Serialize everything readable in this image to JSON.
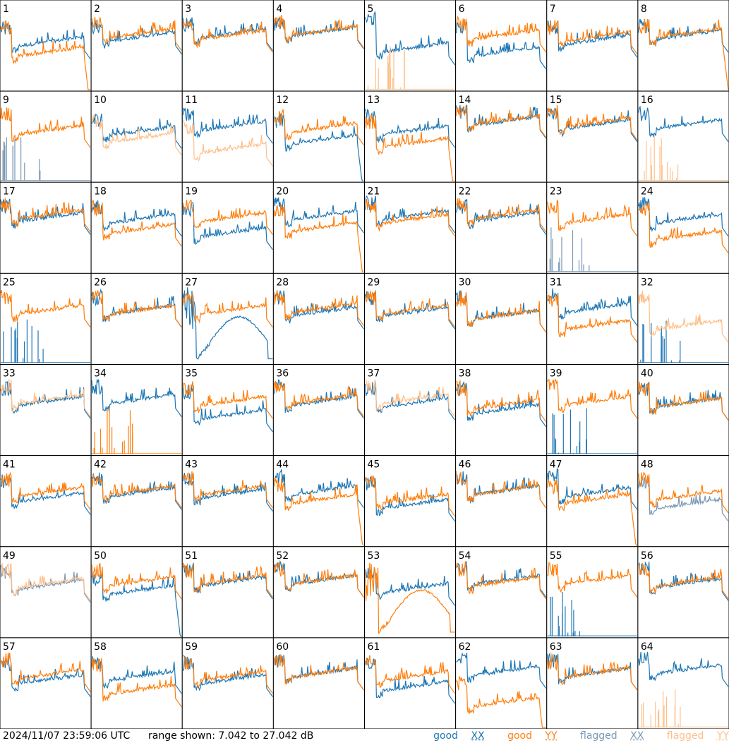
{
  "footer": {
    "timestamp": "2024/11/07 23:59:06 UTC",
    "range_text": "range shown: 7.042 to 27.042 dB"
  },
  "legend": [
    {
      "word": "good",
      "pol": "XX",
      "color": "#1f77b4"
    },
    {
      "word": "good",
      "pol": "YY",
      "color": "#ff7f0e"
    },
    {
      "word": "flagged",
      "pol": "XX",
      "color": "#7a98b6"
    },
    {
      "word": "flagged",
      "pol": "YY",
      "color": "#ffbf8a"
    }
  ],
  "chart_data": {
    "type": "line",
    "grid": {
      "rows": 8,
      "cols": 8
    },
    "ylim": [
      7.042,
      27.042
    ],
    "ylabel_units": "dB",
    "colors": {
      "good_xx": "#1f77b4",
      "good_yy": "#ff7f0e",
      "flagged_xx": "#7a98b6",
      "flagged_yy": "#ffbf8a"
    },
    "panels": [
      {
        "label": "1",
        "xx": {
          "level": 0.6,
          "mid": 0.52,
          "flag": false,
          "shape": "normal"
        },
        "yy": {
          "level": 0.62,
          "mid": 0.4,
          "flag": false,
          "shape": "drop"
        }
      },
      {
        "label": "2",
        "xx": {
          "level": 0.63,
          "mid": 0.58,
          "flag": false,
          "shape": "normal"
        },
        "yy": {
          "level": 0.66,
          "mid": 0.62,
          "flag": false,
          "shape": "normal"
        }
      },
      {
        "label": "3",
        "xx": {
          "level": 0.66,
          "mid": 0.62,
          "flag": false,
          "shape": "normal"
        },
        "yy": {
          "level": 0.64,
          "mid": 0.6,
          "flag": false,
          "shape": "normal"
        }
      },
      {
        "label": "4",
        "xx": {
          "level": 0.66,
          "mid": 0.64,
          "flag": false,
          "shape": "normal"
        },
        "yy": {
          "level": 0.68,
          "mid": 0.65,
          "flag": false,
          "shape": "normal"
        }
      },
      {
        "label": "5",
        "xx": {
          "level": 0.72,
          "mid": 0.45,
          "flag": false,
          "shape": "normal"
        },
        "yy": {
          "level": 0.0,
          "mid": 0.0,
          "flag": true,
          "shape": "spikes"
        }
      },
      {
        "label": "6",
        "xx": {
          "level": 0.62,
          "mid": 0.4,
          "flag": false,
          "shape": "normal"
        },
        "yy": {
          "level": 0.66,
          "mid": 0.6,
          "flag": false,
          "shape": "normal"
        }
      },
      {
        "label": "7",
        "xx": {
          "level": 0.63,
          "mid": 0.54,
          "flag": false,
          "shape": "normal"
        },
        "yy": {
          "level": 0.62,
          "mid": 0.58,
          "flag": false,
          "shape": "normal"
        }
      },
      {
        "label": "8",
        "xx": {
          "level": 0.64,
          "mid": 0.6,
          "flag": false,
          "shape": "normal"
        },
        "yy": {
          "level": 0.64,
          "mid": 0.62,
          "flag": false,
          "shape": "drop"
        }
      },
      {
        "label": "9",
        "xx": {
          "level": 0.0,
          "mid": 0.0,
          "flag": true,
          "shape": "spikes"
        },
        "yy": {
          "level": 0.68,
          "mid": 0.55,
          "flag": false,
          "shape": "normal"
        }
      },
      {
        "label": "10",
        "xx": {
          "level": 0.6,
          "mid": 0.54,
          "flag": false,
          "shape": "normal"
        },
        "yy": {
          "level": 0.58,
          "mid": 0.46,
          "flag": true,
          "shape": "normal"
        }
      },
      {
        "label": "11",
        "xx": {
          "level": 0.66,
          "mid": 0.6,
          "flag": false,
          "shape": "normal"
        },
        "yy": {
          "level": 0.52,
          "mid": 0.33,
          "flag": true,
          "shape": "normal"
        }
      },
      {
        "label": "12",
        "xx": {
          "level": 0.6,
          "mid": 0.44,
          "flag": false,
          "shape": "drop"
        },
        "yy": {
          "level": 0.64,
          "mid": 0.58,
          "flag": false,
          "shape": "normal"
        }
      },
      {
        "label": "13",
        "xx": {
          "level": 0.66,
          "mid": 0.55,
          "flag": false,
          "shape": "normal"
        },
        "yy": {
          "level": 0.58,
          "mid": 0.4,
          "flag": false,
          "shape": "drop"
        }
      },
      {
        "label": "14",
        "xx": {
          "level": 0.7,
          "mid": 0.66,
          "flag": false,
          "shape": "normal"
        },
        "yy": {
          "level": 0.7,
          "mid": 0.67,
          "flag": false,
          "shape": "normal"
        }
      },
      {
        "label": "15",
        "xx": {
          "level": 0.68,
          "mid": 0.62,
          "flag": false,
          "shape": "normal"
        },
        "yy": {
          "level": 0.7,
          "mid": 0.64,
          "flag": false,
          "shape": "normal"
        }
      },
      {
        "label": "16",
        "xx": {
          "level": 0.68,
          "mid": 0.62,
          "flag": false,
          "shape": "normal"
        },
        "yy": {
          "level": 0.0,
          "mid": 0.0,
          "flag": true,
          "shape": "spikes"
        }
      },
      {
        "label": "17",
        "xx": {
          "level": 0.66,
          "mid": 0.6,
          "flag": false,
          "shape": "normal"
        },
        "yy": {
          "level": 0.68,
          "mid": 0.63,
          "flag": false,
          "shape": "normal"
        }
      },
      {
        "label": "18",
        "xx": {
          "level": 0.66,
          "mid": 0.58,
          "flag": false,
          "shape": "normal"
        },
        "yy": {
          "level": 0.64,
          "mid": 0.46,
          "flag": false,
          "shape": "normal"
        }
      },
      {
        "label": "19",
        "xx": {
          "level": 0.62,
          "mid": 0.42,
          "flag": false,
          "shape": "normal"
        },
        "yy": {
          "level": 0.68,
          "mid": 0.6,
          "flag": false,
          "shape": "normal"
        }
      },
      {
        "label": "20",
        "xx": {
          "level": 0.7,
          "mid": 0.62,
          "flag": false,
          "shape": "normal"
        },
        "yy": {
          "level": 0.6,
          "mid": 0.48,
          "flag": false,
          "shape": "drop"
        }
      },
      {
        "label": "21",
        "xx": {
          "level": 0.7,
          "mid": 0.62,
          "flag": false,
          "shape": "normal"
        },
        "yy": {
          "level": 0.66,
          "mid": 0.58,
          "flag": false,
          "shape": "normal"
        }
      },
      {
        "label": "22",
        "xx": {
          "level": 0.66,
          "mid": 0.6,
          "flag": false,
          "shape": "normal"
        },
        "yy": {
          "level": 0.68,
          "mid": 0.63,
          "flag": false,
          "shape": "normal"
        }
      },
      {
        "label": "23",
        "xx": {
          "level": 0.0,
          "mid": 0.0,
          "flag": true,
          "shape": "spikes"
        },
        "yy": {
          "level": 0.66,
          "mid": 0.58,
          "flag": false,
          "shape": "normal"
        }
      },
      {
        "label": "24",
        "xx": {
          "level": 0.68,
          "mid": 0.58,
          "flag": false,
          "shape": "normal"
        },
        "yy": {
          "level": 0.62,
          "mid": 0.38,
          "flag": false,
          "shape": "normal"
        }
      },
      {
        "label": "25",
        "xx": {
          "level": 0.0,
          "mid": 0.0,
          "flag": false,
          "shape": "spikes"
        },
        "yy": {
          "level": 0.66,
          "mid": 0.58,
          "flag": false,
          "shape": "normal"
        }
      },
      {
        "label": "26",
        "xx": {
          "level": 0.66,
          "mid": 0.58,
          "flag": false,
          "shape": "normal"
        },
        "yy": {
          "level": 0.66,
          "mid": 0.58,
          "flag": false,
          "shape": "normal"
        }
      },
      {
        "label": "27",
        "xx": {
          "level": 0.3,
          "mid": 0.45,
          "flag": false,
          "shape": "hump"
        },
        "yy": {
          "level": 0.64,
          "mid": 0.58,
          "flag": false,
          "shape": "normal"
        }
      },
      {
        "label": "28",
        "xx": {
          "level": 0.66,
          "mid": 0.56,
          "flag": false,
          "shape": "normal"
        },
        "yy": {
          "level": 0.66,
          "mid": 0.6,
          "flag": false,
          "shape": "normal"
        }
      },
      {
        "label": "29",
        "xx": {
          "level": 0.66,
          "mid": 0.56,
          "flag": false,
          "shape": "normal"
        },
        "yy": {
          "level": 0.66,
          "mid": 0.58,
          "flag": false,
          "shape": "normal"
        }
      },
      {
        "label": "30",
        "xx": {
          "level": 0.66,
          "mid": 0.52,
          "flag": false,
          "shape": "normal"
        },
        "yy": {
          "level": 0.64,
          "mid": 0.52,
          "flag": false,
          "shape": "normal"
        }
      },
      {
        "label": "31",
        "xx": {
          "level": 0.68,
          "mid": 0.6,
          "flag": false,
          "shape": "normal"
        },
        "yy": {
          "level": 0.62,
          "mid": 0.4,
          "flag": false,
          "shape": "normal"
        }
      },
      {
        "label": "32",
        "xx": {
          "level": 0.0,
          "mid": 0.0,
          "flag": false,
          "shape": "spikes"
        },
        "yy": {
          "level": 0.66,
          "mid": 0.4,
          "flag": true,
          "shape": "normal"
        }
      },
      {
        "label": "33",
        "xx": {
          "level": 0.66,
          "mid": 0.58,
          "flag": false,
          "shape": "normal"
        },
        "yy": {
          "level": 0.68,
          "mid": 0.6,
          "flag": true,
          "shape": "normal"
        }
      },
      {
        "label": "34",
        "xx": {
          "level": 0.68,
          "mid": 0.6,
          "flag": false,
          "shape": "normal"
        },
        "yy": {
          "level": 0.0,
          "mid": 0.0,
          "flag": false,
          "shape": "spikes"
        }
      },
      {
        "label": "35",
        "xx": {
          "level": 0.62,
          "mid": 0.42,
          "flag": false,
          "shape": "normal"
        },
        "yy": {
          "level": 0.66,
          "mid": 0.58,
          "flag": false,
          "shape": "normal"
        }
      },
      {
        "label": "36",
        "xx": {
          "level": 0.68,
          "mid": 0.58,
          "flag": false,
          "shape": "normal"
        },
        "yy": {
          "level": 0.68,
          "mid": 0.6,
          "flag": false,
          "shape": "normal"
        }
      },
      {
        "label": "37",
        "xx": {
          "level": 0.66,
          "mid": 0.56,
          "flag": false,
          "shape": "normal"
        },
        "yy": {
          "level": 0.68,
          "mid": 0.6,
          "flag": true,
          "shape": "normal"
        }
      },
      {
        "label": "38",
        "xx": {
          "level": 0.66,
          "mid": 0.48,
          "flag": false,
          "shape": "normal"
        },
        "yy": {
          "level": 0.66,
          "mid": 0.54,
          "flag": false,
          "shape": "normal"
        }
      },
      {
        "label": "39",
        "xx": {
          "level": 0.0,
          "mid": 0.0,
          "flag": false,
          "shape": "spikes"
        },
        "yy": {
          "level": 0.68,
          "mid": 0.58,
          "flag": false,
          "shape": "normal"
        }
      },
      {
        "label": "40",
        "xx": {
          "level": 0.66,
          "mid": 0.56,
          "flag": false,
          "shape": "normal"
        },
        "yy": {
          "level": 0.66,
          "mid": 0.56,
          "flag": false,
          "shape": "normal"
        }
      },
      {
        "label": "41",
        "xx": {
          "level": 0.64,
          "mid": 0.52,
          "flag": false,
          "shape": "normal"
        },
        "yy": {
          "level": 0.66,
          "mid": 0.58,
          "flag": false,
          "shape": "normal"
        }
      },
      {
        "label": "42",
        "xx": {
          "level": 0.66,
          "mid": 0.58,
          "flag": false,
          "shape": "normal"
        },
        "yy": {
          "level": 0.66,
          "mid": 0.6,
          "flag": false,
          "shape": "normal"
        }
      },
      {
        "label": "43",
        "xx": {
          "level": 0.66,
          "mid": 0.56,
          "flag": false,
          "shape": "normal"
        },
        "yy": {
          "level": 0.68,
          "mid": 0.6,
          "flag": false,
          "shape": "normal"
        }
      },
      {
        "label": "44",
        "xx": {
          "level": 0.7,
          "mid": 0.6,
          "flag": false,
          "shape": "normal"
        },
        "yy": {
          "level": 0.6,
          "mid": 0.5,
          "flag": false,
          "shape": "drop"
        }
      },
      {
        "label": "45",
        "xx": {
          "level": 0.62,
          "mid": 0.44,
          "flag": false,
          "shape": "normal"
        },
        "yy": {
          "level": 0.64,
          "mid": 0.5,
          "flag": false,
          "shape": "normal"
        }
      },
      {
        "label": "46",
        "xx": {
          "level": 0.68,
          "mid": 0.6,
          "flag": false,
          "shape": "normal"
        },
        "yy": {
          "level": 0.68,
          "mid": 0.6,
          "flag": false,
          "shape": "normal"
        }
      },
      {
        "label": "47",
        "xx": {
          "level": 0.7,
          "mid": 0.58,
          "flag": false,
          "shape": "normal"
        },
        "yy": {
          "level": 0.58,
          "mid": 0.5,
          "flag": false,
          "shape": "drop"
        }
      },
      {
        "label": "48",
        "xx": {
          "level": 0.62,
          "mid": 0.44,
          "flag": true,
          "shape": "normal"
        },
        "yy": {
          "level": 0.66,
          "mid": 0.54,
          "flag": false,
          "shape": "normal"
        }
      },
      {
        "label": "49",
        "xx": {
          "level": 0.64,
          "mid": 0.56,
          "flag": true,
          "shape": "normal"
        },
        "yy": {
          "level": 0.66,
          "mid": 0.58,
          "flag": true,
          "shape": "normal"
        }
      },
      {
        "label": "50",
        "xx": {
          "level": 0.56,
          "mid": 0.5,
          "flag": false,
          "shape": "drop"
        },
        "yy": {
          "level": 0.66,
          "mid": 0.6,
          "flag": false,
          "shape": "normal"
        }
      },
      {
        "label": "51",
        "xx": {
          "level": 0.68,
          "mid": 0.6,
          "flag": false,
          "shape": "normal"
        },
        "yy": {
          "level": 0.66,
          "mid": 0.62,
          "flag": false,
          "shape": "normal"
        }
      },
      {
        "label": "52",
        "xx": {
          "level": 0.7,
          "mid": 0.62,
          "flag": false,
          "shape": "normal"
        },
        "yy": {
          "level": 0.68,
          "mid": 0.62,
          "flag": false,
          "shape": "normal"
        }
      },
      {
        "label": "53",
        "xx": {
          "level": 0.64,
          "mid": 0.52,
          "flag": false,
          "shape": "normal"
        },
        "yy": {
          "level": 0.4,
          "mid": 0.44,
          "flag": false,
          "shape": "hump"
        }
      },
      {
        "label": "54",
        "xx": {
          "level": 0.7,
          "mid": 0.62,
          "flag": false,
          "shape": "normal"
        },
        "yy": {
          "level": 0.68,
          "mid": 0.6,
          "flag": false,
          "shape": "normal"
        }
      },
      {
        "label": "55",
        "xx": {
          "level": 0.0,
          "mid": 0.0,
          "flag": false,
          "shape": "spikes"
        },
        "yy": {
          "level": 0.68,
          "mid": 0.62,
          "flag": false,
          "shape": "normal"
        }
      },
      {
        "label": "56",
        "xx": {
          "level": 0.68,
          "mid": 0.58,
          "flag": false,
          "shape": "normal"
        },
        "yy": {
          "level": 0.68,
          "mid": 0.6,
          "flag": false,
          "shape": "normal"
        }
      },
      {
        "label": "57",
        "xx": {
          "level": 0.64,
          "mid": 0.52,
          "flag": false,
          "shape": "normal"
        },
        "yy": {
          "level": 0.68,
          "mid": 0.58,
          "flag": false,
          "shape": "normal"
        }
      },
      {
        "label": "58",
        "xx": {
          "level": 0.66,
          "mid": 0.56,
          "flag": false,
          "shape": "normal"
        },
        "yy": {
          "level": 0.62,
          "mid": 0.4,
          "flag": false,
          "shape": "normal"
        }
      },
      {
        "label": "59",
        "xx": {
          "level": 0.64,
          "mid": 0.52,
          "flag": false,
          "shape": "normal"
        },
        "yy": {
          "level": 0.66,
          "mid": 0.56,
          "flag": false,
          "shape": "normal"
        }
      },
      {
        "label": "60",
        "xx": {
          "level": 0.68,
          "mid": 0.6,
          "flag": false,
          "shape": "normal"
        },
        "yy": {
          "level": 0.68,
          "mid": 0.6,
          "flag": false,
          "shape": "normal"
        }
      },
      {
        "label": "61",
        "xx": {
          "level": 0.62,
          "mid": 0.44,
          "flag": false,
          "shape": "normal"
        },
        "yy": {
          "level": 0.66,
          "mid": 0.56,
          "flag": false,
          "shape": "normal"
        }
      },
      {
        "label": "62",
        "xx": {
          "level": 0.68,
          "mid": 0.62,
          "flag": false,
          "shape": "normal"
        },
        "yy": {
          "level": 0.4,
          "mid": 0.25,
          "flag": false,
          "shape": "drop"
        }
      },
      {
        "label": "63",
        "xx": {
          "level": 0.68,
          "mid": 0.6,
          "flag": false,
          "shape": "normal"
        },
        "yy": {
          "level": 0.66,
          "mid": 0.6,
          "flag": false,
          "shape": "normal"
        }
      },
      {
        "label": "64",
        "xx": {
          "level": 0.7,
          "mid": 0.64,
          "flag": false,
          "shape": "normal"
        },
        "yy": {
          "level": 0.0,
          "mid": 0.0,
          "flag": true,
          "shape": "spikes"
        }
      }
    ]
  }
}
